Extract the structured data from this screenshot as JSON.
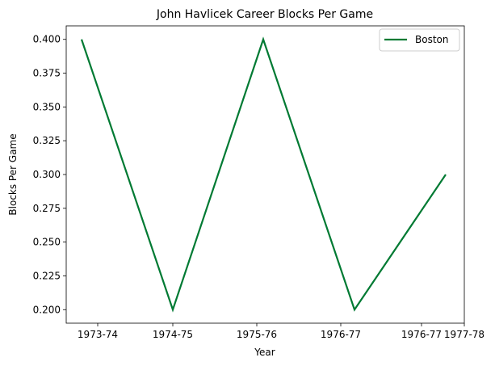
{
  "chart_data": {
    "type": "line",
    "title": "John Havlicek Career Blocks Per Game",
    "xlabel": "Year",
    "ylabel": "Blocks Per Game",
    "x_tick_labels": [
      "1973-74",
      "1974-75",
      "1975-76",
      "1976-77",
      "1976-77",
      "1977-78"
    ],
    "y_tick_labels": [
      "0.200",
      "0.225",
      "0.250",
      "0.275",
      "0.300",
      "0.325",
      "0.350",
      "0.375",
      "0.400"
    ],
    "ylim": [
      0.19,
      0.41
    ],
    "grid": false,
    "legend_position": "top-right",
    "series": [
      {
        "name": "Boston",
        "color": "#007a33",
        "x": [
          0,
          1,
          2,
          3,
          4
        ],
        "y": [
          0.4,
          0.2,
          0.4,
          0.2,
          0.3
        ]
      }
    ]
  }
}
